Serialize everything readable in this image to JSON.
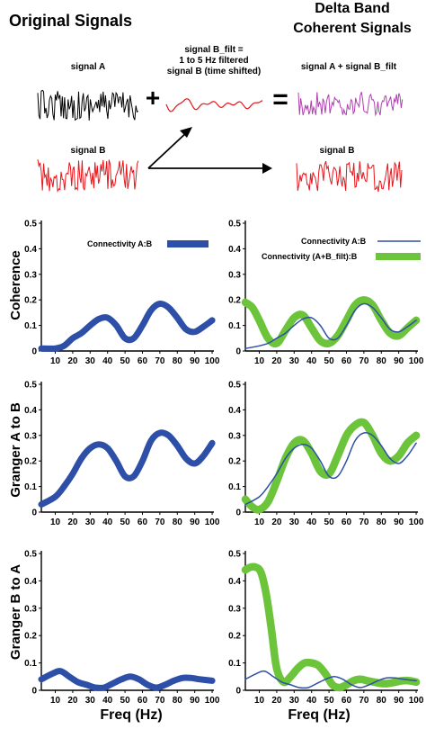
{
  "colors": {
    "signal_a": "#000000",
    "signal_b": "#e8141b",
    "signal_b_filt": "#e8141b",
    "signal_sum": "#b040b0",
    "connectivity_ab": "#2e4fa8",
    "connectivity_sum": "#6cc43a",
    "axis": "#000000"
  },
  "header": {
    "left_title": "Original Signals",
    "right_title_line1": "Delta Band",
    "right_title_line2": "Coherent Signals"
  },
  "signals": {
    "signal_a_label": "signal A",
    "signal_b_label": "signal B",
    "filtered_label_line1": "signal B_filt =",
    "filtered_label_line2": "1 to 5 Hz filtered",
    "filtered_label_line3": "signal B (time shifted)",
    "sum_label": "signal A + signal B_filt",
    "right_signal_b_label": "signal B",
    "plus_symbol": "+",
    "equals_symbol": "="
  },
  "row_labels": [
    "Coherence",
    "Granger A to B",
    "Granger B to A"
  ],
  "x_axis_label": "Freq (Hz)",
  "legend": {
    "left": "Connectivity A:B",
    "right_thin": "Connectivity A:B",
    "right_thick": "Connectivity (A+B_filt):B"
  },
  "chart_data": [
    {
      "type": "line",
      "panel": "coherence-left",
      "x_ticks": [
        10,
        20,
        30,
        40,
        50,
        60,
        70,
        80,
        90,
        100
      ],
      "y_ticks": [
        0,
        0.1,
        0.2,
        0.3,
        0.4,
        0.5
      ],
      "xlim": [
        2,
        101
      ],
      "ylim": [
        0,
        0.5
      ],
      "series": [
        {
          "name": "Connectivity A:B",
          "x": [
            2,
            10,
            15,
            20,
            25,
            30,
            35,
            40,
            45,
            50,
            55,
            60,
            65,
            70,
            75,
            80,
            85,
            90,
            95,
            100
          ],
          "y": [
            0.01,
            0.01,
            0.02,
            0.05,
            0.07,
            0.1,
            0.125,
            0.13,
            0.1,
            0.05,
            0.05,
            0.1,
            0.16,
            0.185,
            0.17,
            0.13,
            0.085,
            0.075,
            0.095,
            0.12
          ]
        }
      ]
    },
    {
      "type": "line",
      "panel": "coherence-right",
      "x_ticks": [
        10,
        20,
        30,
        40,
        50,
        60,
        70,
        80,
        90,
        100
      ],
      "y_ticks": [
        0,
        0.1,
        0.2,
        0.3,
        0.4,
        0.5
      ],
      "xlim": [
        2,
        101
      ],
      "ylim": [
        0,
        0.5
      ],
      "series": [
        {
          "name": "Connectivity A:B",
          "x": [
            2,
            10,
            15,
            20,
            25,
            30,
            35,
            40,
            45,
            50,
            55,
            60,
            65,
            70,
            75,
            80,
            85,
            90,
            95,
            100
          ],
          "y": [
            0.01,
            0.02,
            0.03,
            0.05,
            0.07,
            0.1,
            0.125,
            0.13,
            0.1,
            0.05,
            0.05,
            0.1,
            0.16,
            0.185,
            0.17,
            0.13,
            0.085,
            0.075,
            0.095,
            0.12
          ]
        },
        {
          "name": "Connectivity (A+B_filt):B",
          "x": [
            2,
            6,
            10,
            15,
            20,
            25,
            30,
            35,
            40,
            45,
            50,
            55,
            60,
            65,
            70,
            75,
            80,
            85,
            90,
            95,
            100
          ],
          "y": [
            0.19,
            0.17,
            0.12,
            0.05,
            0.03,
            0.08,
            0.13,
            0.14,
            0.09,
            0.04,
            0.03,
            0.06,
            0.12,
            0.18,
            0.2,
            0.18,
            0.12,
            0.07,
            0.06,
            0.09,
            0.12
          ]
        }
      ]
    },
    {
      "type": "line",
      "panel": "granger-ab-left",
      "x_ticks": [
        10,
        20,
        30,
        40,
        50,
        60,
        70,
        80,
        90,
        100
      ],
      "y_ticks": [
        0,
        0.1,
        0.2,
        0.3,
        0.4,
        0.5
      ],
      "xlim": [
        2,
        101
      ],
      "ylim": [
        0,
        0.5
      ],
      "series": [
        {
          "name": "Connectivity A:B",
          "x": [
            2,
            10,
            15,
            20,
            25,
            30,
            35,
            40,
            45,
            50,
            55,
            60,
            65,
            70,
            75,
            80,
            85,
            90,
            95,
            100
          ],
          "y": [
            0.03,
            0.06,
            0.1,
            0.15,
            0.21,
            0.25,
            0.265,
            0.25,
            0.2,
            0.14,
            0.14,
            0.2,
            0.28,
            0.31,
            0.3,
            0.26,
            0.21,
            0.19,
            0.22,
            0.27
          ]
        }
      ]
    },
    {
      "type": "line",
      "panel": "granger-ab-right",
      "x_ticks": [
        10,
        20,
        30,
        40,
        50,
        60,
        70,
        80,
        90,
        100
      ],
      "y_ticks": [
        0,
        0.1,
        0.2,
        0.3,
        0.4,
        0.5
      ],
      "xlim": [
        2,
        101
      ],
      "ylim": [
        0,
        0.5
      ],
      "series": [
        {
          "name": "Connectivity A:B",
          "x": [
            2,
            10,
            15,
            20,
            25,
            30,
            35,
            40,
            45,
            50,
            55,
            60,
            65,
            70,
            75,
            80,
            85,
            90,
            95,
            100
          ],
          "y": [
            0.03,
            0.06,
            0.1,
            0.15,
            0.21,
            0.25,
            0.265,
            0.25,
            0.2,
            0.14,
            0.14,
            0.2,
            0.28,
            0.31,
            0.3,
            0.26,
            0.21,
            0.19,
            0.22,
            0.27
          ]
        },
        {
          "name": "Connectivity (A+B_filt):B",
          "x": [
            2,
            6,
            10,
            15,
            20,
            25,
            30,
            35,
            40,
            45,
            50,
            55,
            60,
            65,
            70,
            75,
            80,
            85,
            90,
            95,
            100
          ],
          "y": [
            0.05,
            0.02,
            0.01,
            0.04,
            0.12,
            0.21,
            0.27,
            0.28,
            0.23,
            0.16,
            0.15,
            0.22,
            0.3,
            0.34,
            0.35,
            0.3,
            0.23,
            0.2,
            0.22,
            0.27,
            0.3
          ]
        }
      ]
    },
    {
      "type": "line",
      "panel": "granger-ba-left",
      "x_ticks": [
        10,
        20,
        30,
        40,
        50,
        60,
        70,
        80,
        90,
        100
      ],
      "y_ticks": [
        0,
        0.1,
        0.2,
        0.3,
        0.4,
        0.5
      ],
      "xlim": [
        2,
        101
      ],
      "ylim": [
        0,
        0.5
      ],
      "series": [
        {
          "name": "Connectivity A:B",
          "x": [
            2,
            8,
            13,
            18,
            23,
            28,
            33,
            38,
            43,
            48,
            53,
            58,
            63,
            68,
            73,
            78,
            83,
            88,
            93,
            100
          ],
          "y": [
            0.04,
            0.06,
            0.07,
            0.05,
            0.03,
            0.02,
            0.01,
            0.01,
            0.025,
            0.04,
            0.05,
            0.04,
            0.02,
            0.01,
            0.02,
            0.035,
            0.045,
            0.045,
            0.04,
            0.035
          ]
        }
      ]
    },
    {
      "type": "line",
      "panel": "granger-ba-right",
      "x_ticks": [
        10,
        20,
        30,
        40,
        50,
        60,
        70,
        80,
        90,
        100
      ],
      "y_ticks": [
        0,
        0.1,
        0.2,
        0.3,
        0.4,
        0.5
      ],
      "xlim": [
        2,
        101
      ],
      "ylim": [
        0,
        0.5
      ],
      "series": [
        {
          "name": "Connectivity A:B",
          "x": [
            2,
            8,
            13,
            18,
            23,
            28,
            33,
            38,
            43,
            48,
            53,
            58,
            63,
            68,
            73,
            78,
            83,
            88,
            93,
            100
          ],
          "y": [
            0.04,
            0.06,
            0.07,
            0.05,
            0.03,
            0.02,
            0.01,
            0.01,
            0.025,
            0.04,
            0.05,
            0.04,
            0.02,
            0.01,
            0.02,
            0.035,
            0.045,
            0.045,
            0.04,
            0.035
          ]
        },
        {
          "name": "Connectivity (A+B_filt):B",
          "x": [
            2,
            5,
            8,
            11,
            14,
            17,
            20,
            24,
            28,
            32,
            36,
            40,
            44,
            48,
            52,
            56,
            60,
            64,
            68,
            72,
            76,
            80,
            84,
            88,
            92,
            96,
            100
          ],
          "y": [
            0.44,
            0.45,
            0.45,
            0.43,
            0.35,
            0.22,
            0.08,
            0.03,
            0.05,
            0.08,
            0.1,
            0.1,
            0.09,
            0.06,
            0.02,
            0.01,
            0.02,
            0.035,
            0.04,
            0.035,
            0.03,
            0.025,
            0.025,
            0.03,
            0.035,
            0.035,
            0.03
          ]
        }
      ]
    }
  ]
}
